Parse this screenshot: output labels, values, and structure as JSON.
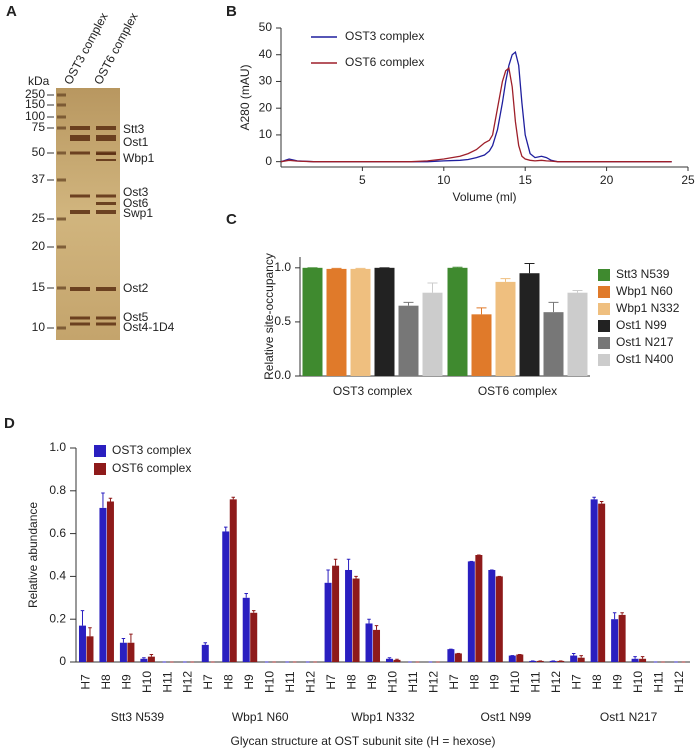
{
  "gel": {
    "panel": "A",
    "unit": "kDa",
    "lanes": [
      "OST3 complex",
      "OST6 complex"
    ],
    "markers": [
      250,
      150,
      100,
      75,
      50,
      37,
      25,
      20,
      15,
      10
    ],
    "bands": [
      "Stt3",
      "Ost1",
      "Wbp1",
      "Ost3",
      "Ost6",
      "Swp1",
      "Ost2",
      "Ost5",
      "Ost4-1D4"
    ]
  },
  "chart_data": [
    {
      "type": "line",
      "panel": "B",
      "xlabel": "Volume (ml)",
      "ylabel": "A280 (mAU)",
      "legend": "upper left",
      "x": [
        0,
        0.5,
        1,
        2,
        4,
        6,
        8,
        9,
        10,
        11,
        11.5,
        12,
        12.5,
        12.8,
        13,
        13.3,
        13.6,
        13.8,
        14,
        14.2,
        14.4,
        14.6,
        14.8,
        15,
        15.3,
        15.6,
        16,
        16.3,
        16.6,
        17,
        18,
        20,
        22,
        24
      ],
      "series": [
        {
          "name": "OST3 complex",
          "color": "#1f1f9e",
          "values": [
            0,
            1,
            0.3,
            0,
            0,
            0,
            0,
            0,
            0.3,
            0.5,
            0.8,
            1.5,
            2.5,
            4,
            6,
            12,
            22,
            30,
            36,
            40,
            41,
            36,
            22,
            10,
            3,
            1.5,
            2,
            1.5,
            0.5,
            0,
            0,
            0,
            0,
            0
          ]
        },
        {
          "name": "OST6 complex",
          "color": "#9e1f2a",
          "values": [
            0,
            0.5,
            0.2,
            0,
            0,
            0,
            0,
            0.3,
            1,
            2,
            3,
            4.5,
            7,
            8,
            10,
            20,
            30,
            34,
            35,
            28,
            15,
            6,
            2,
            1,
            0.5,
            0.3,
            0.5,
            0.3,
            0.2,
            0,
            0,
            0,
            0,
            0
          ]
        }
      ],
      "xlim": [
        0,
        25
      ],
      "xticks": [
        5,
        10,
        15,
        20,
        25
      ],
      "ylim": [
        -2,
        50
      ],
      "yticks": [
        0,
        10,
        20,
        30,
        40,
        50
      ]
    },
    {
      "type": "bar",
      "panel": "C",
      "ylabel": "Relative site-occupancy",
      "legend": "right",
      "categories": [
        "OST3 complex",
        "OST6 complex"
      ],
      "series": [
        {
          "name": "Stt3 N539",
          "color": "#3f8a2f",
          "values": [
            1.0,
            1.0
          ],
          "errors": [
            0,
            0.005
          ]
        },
        {
          "name": "Wbp1 N60",
          "color": "#e07a2a",
          "values": [
            0.99,
            0.57
          ],
          "errors": [
            0.005,
            0.06
          ]
        },
        {
          "name": "Wbp1 N332",
          "color": "#efbf7f",
          "values": [
            0.99,
            0.87
          ],
          "errors": [
            0.005,
            0.03
          ]
        },
        {
          "name": "Ost1 N99",
          "color": "#222222",
          "values": [
            1.0,
            0.95
          ],
          "errors": [
            0,
            0.09
          ]
        },
        {
          "name": "Ost1 N217",
          "color": "#777777",
          "values": [
            0.65,
            0.59
          ],
          "errors": [
            0.03,
            0.09
          ]
        },
        {
          "name": "Ost1 N400",
          "color": "#cccccc",
          "values": [
            0.77,
            0.77
          ],
          "errors": [
            0.09,
            0.02
          ]
        }
      ],
      "ylim": [
        0,
        1.1
      ],
      "yticks": [
        {
          "value": 0,
          "label": "0.0"
        },
        0.5,
        {
          "value": 1,
          "label": "1.0"
        }
      ]
    },
    {
      "type": "bar",
      "panel": "D",
      "xlabel": "Glycan structure at OST subunit site (H = hexose)",
      "ylabel": "Relative abundance",
      "legend": "upper left",
      "groups": [
        "Stt3 N539",
        "Wbp1 N60",
        "Wbp1 N332",
        "Ost1 N99",
        "Ost1 N217"
      ],
      "categories": [
        "H7",
        "H8",
        "H9",
        "H10",
        "H11",
        "H12",
        "H7",
        "H8",
        "H9",
        "H10",
        "H11",
        "H12",
        "H7",
        "H8",
        "H9",
        "H10",
        "H11",
        "H12",
        "H7",
        "H8",
        "H9",
        "H10",
        "H11",
        "H12",
        "H7",
        "H8",
        "H9",
        "H10",
        "H11",
        "H12"
      ],
      "series": [
        {
          "name": "OST3 complex",
          "color": "#2a1fc0",
          "values": [
            0.17,
            0.72,
            0.09,
            0.015,
            0,
            0,
            0.08,
            0.61,
            0.3,
            0,
            0,
            0,
            0.37,
            0.43,
            0.18,
            0.015,
            0,
            0,
            0.06,
            0.47,
            0.43,
            0.03,
            0.005,
            0.005,
            0.03,
            0.76,
            0.2,
            0.015,
            0,
            0
          ],
          "errors": [
            0.07,
            0.07,
            0.02,
            0.005,
            0,
            0,
            0.01,
            0.02,
            0.02,
            0,
            0,
            0,
            0.06,
            0.05,
            0.02,
            0.005,
            0,
            0,
            0,
            0,
            0,
            0,
            0,
            0,
            0.01,
            0.01,
            0.03,
            0.01,
            0,
            0
          ]
        },
        {
          "name": "OST6 complex",
          "color": "#8e1a1a",
          "values": [
            0.12,
            0.75,
            0.09,
            0.025,
            0,
            0,
            0,
            0.76,
            0.23,
            0,
            0,
            0,
            0.45,
            0.39,
            0.15,
            0.01,
            0,
            0,
            0.04,
            0.5,
            0.4,
            0.035,
            0.005,
            0.005,
            0.02,
            0.74,
            0.22,
            0.015,
            0,
            0
          ],
          "errors": [
            0.04,
            0.015,
            0.04,
            0.01,
            0,
            0,
            0,
            0.01,
            0.01,
            0,
            0,
            0,
            0.03,
            0.01,
            0.02,
            0.003,
            0,
            0,
            0,
            0,
            0,
            0,
            0,
            0,
            0.01,
            0.01,
            0.01,
            0.01,
            0,
            0
          ]
        }
      ],
      "ylim": [
        0,
        1.0
      ],
      "yticks": [
        0,
        0.2,
        0.4,
        0.6,
        0.8,
        {
          "value": 1,
          "label": "1.0"
        }
      ]
    }
  ]
}
